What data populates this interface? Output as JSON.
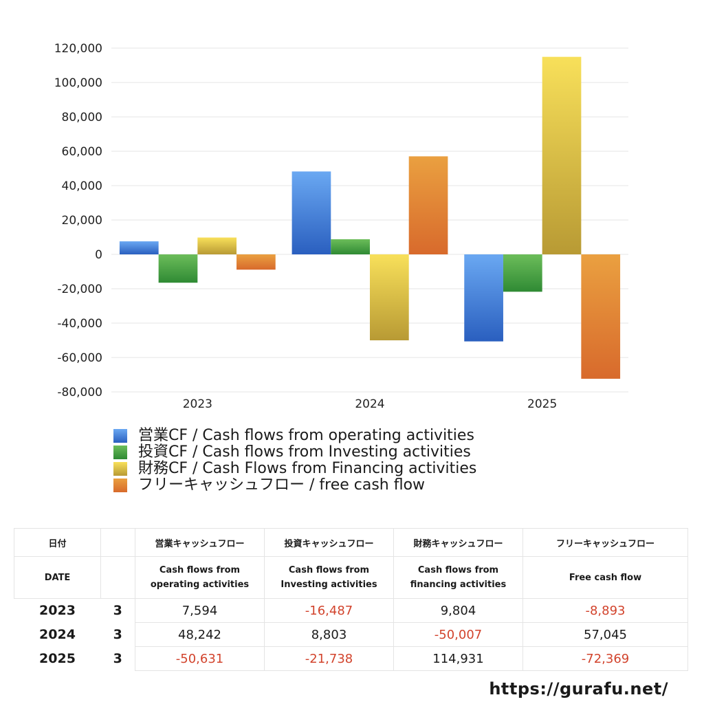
{
  "chart_data": {
    "type": "bar",
    "categories": [
      "2023",
      "2024",
      "2025"
    ],
    "series": [
      {
        "name": "営業CF / Cash flows from operating activities",
        "values": [
          7594,
          48242,
          -50631
        ],
        "color_top": "#6aa8f2",
        "color_bottom": "#2a5fbf"
      },
      {
        "name": "投資CF / Cash flows from Investing activities",
        "values": [
          -16487,
          8803,
          -21738
        ],
        "color_top": "#6cbd5a",
        "color_bottom": "#2f8a34"
      },
      {
        "name": "財務CF / Cash Flows from Financing activities",
        "values": [
          9804,
          -50007,
          114931
        ],
        "color_top": "#f8e05a",
        "color_bottom": "#b89a34"
      },
      {
        "name": "フリーキャッシュフロー / free cash flow",
        "values": [
          -8893,
          57045,
          -72369
        ],
        "color_top": "#eaa040",
        "color_bottom": "#d86a2c"
      }
    ],
    "ylim": [
      -80000,
      120000
    ],
    "yticks": [
      120000,
      100000,
      80000,
      60000,
      40000,
      20000,
      0,
      -20000,
      -40000,
      -60000,
      -80000
    ],
    "ytick_labels": [
      "120,000",
      "100,000",
      "80,000",
      "60,000",
      "40,000",
      "20,000",
      "0",
      "-20,000",
      "-40,000",
      "-60,000",
      "-80,000"
    ],
    "grid": true,
    "legend_position": "bottom-left"
  },
  "table": {
    "headers_jp": [
      "日付",
      "営業キャッシュフロー",
      "投資キャッシュフロー",
      "財務キャッシュフロー",
      "フリーキャッシュフロー"
    ],
    "headers_en": [
      "DATE",
      "Cash flows from operating activities",
      "Cash flows from Investing activities",
      "Cash flows from financing activities",
      "Free cash flow"
    ],
    "rows": [
      {
        "year": "2023",
        "month": "3",
        "cells": [
          {
            "text": "7,594",
            "neg": false
          },
          {
            "text": "-16,487",
            "neg": true
          },
          {
            "text": "9,804",
            "neg": false
          },
          {
            "text": "-8,893",
            "neg": true
          }
        ]
      },
      {
        "year": "2024",
        "month": "3",
        "cells": [
          {
            "text": "48,242",
            "neg": false
          },
          {
            "text": "8,803",
            "neg": false
          },
          {
            "text": "-50,007",
            "neg": true
          },
          {
            "text": "57,045",
            "neg": false
          }
        ]
      },
      {
        "year": "2025",
        "month": "3",
        "cells": [
          {
            "text": "-50,631",
            "neg": true
          },
          {
            "text": "-21,738",
            "neg": true
          },
          {
            "text": "114,931",
            "neg": false
          },
          {
            "text": "-72,369",
            "neg": true
          }
        ]
      }
    ]
  },
  "site_url": "https://gurafu.net/",
  "colors": {
    "negative": "#d2432c",
    "grid": "#e6e6e6"
  }
}
